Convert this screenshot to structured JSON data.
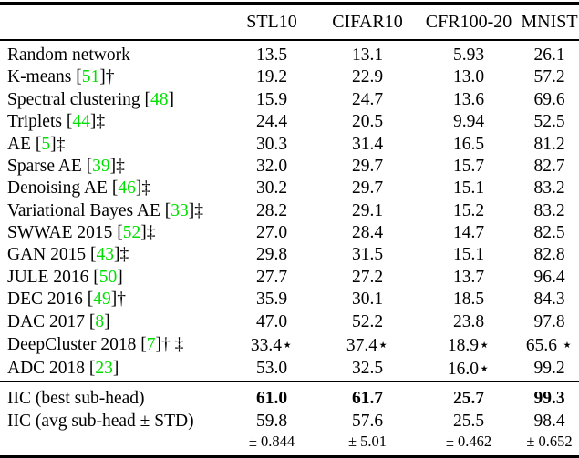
{
  "colors": {
    "citation_green": "#00e000",
    "text": "#000000",
    "background": "#ffffff"
  },
  "table": {
    "columns": [
      "STL10",
      "CIFAR10",
      "CFR100-20",
      "MNIST"
    ],
    "rows": [
      {
        "name": "Random network",
        "cite": "",
        "marker": "",
        "values": [
          "13.5",
          "13.1",
          "5.93",
          "26.1"
        ]
      },
      {
        "name": "K-means",
        "cite": "51",
        "marker": "†",
        "values": [
          "19.2",
          "22.9",
          "13.0",
          "57.2"
        ]
      },
      {
        "name": "Spectral clustering",
        "cite": "48",
        "marker": "",
        "values": [
          "15.9",
          "24.7",
          "13.6",
          "69.6"
        ]
      },
      {
        "name": "Triplets",
        "cite": "44",
        "marker": "‡",
        "values": [
          "24.4",
          "20.5",
          "9.94",
          "52.5"
        ]
      },
      {
        "name": "AE",
        "cite": "5",
        "marker": "‡",
        "values": [
          "30.3",
          "31.4",
          "16.5",
          "81.2"
        ]
      },
      {
        "name": "Sparse AE",
        "cite": "39",
        "marker": "‡",
        "values": [
          "32.0",
          "29.7",
          "15.7",
          "82.7"
        ]
      },
      {
        "name": "Denoising AE",
        "cite": "46",
        "marker": "‡",
        "values": [
          "30.2",
          "29.7",
          "15.1",
          "83.2"
        ]
      },
      {
        "name": "Variational Bayes AE",
        "cite": "33",
        "marker": "‡",
        "values": [
          "28.2",
          "29.1",
          "15.2",
          "83.2"
        ]
      },
      {
        "name": "SWWAE 2015",
        "cite": "52",
        "marker": "‡",
        "values": [
          "27.0",
          "28.4",
          "14.7",
          "82.5"
        ]
      },
      {
        "name": "GAN 2015",
        "cite": "43",
        "marker": "‡",
        "values": [
          "29.8",
          "31.5",
          "15.1",
          "82.8"
        ]
      },
      {
        "name": "JULE 2016",
        "cite": "50",
        "marker": "",
        "values": [
          "27.7",
          "27.2",
          "13.7",
          "96.4"
        ]
      },
      {
        "name": "DEC 2016",
        "cite": "49",
        "marker": "†",
        "values": [
          "35.9",
          "30.1",
          "18.5",
          "84.3"
        ]
      },
      {
        "name": "DAC 2017",
        "cite": "8",
        "marker": "",
        "values": [
          "47.0",
          "52.2",
          "23.8",
          "97.8"
        ]
      },
      {
        "name": "DeepCluster 2018",
        "cite": "7",
        "marker": "† ‡",
        "values": [
          "33.4⋆",
          "37.4⋆",
          "18.9⋆",
          "65.6 ⋆"
        ]
      },
      {
        "name": "ADC 2018",
        "cite": "23",
        "marker": "",
        "values": [
          "53.0",
          "32.5",
          "16.0⋆",
          "99.2"
        ]
      }
    ],
    "iic_rows": [
      {
        "label": "IIC (best sub-head)",
        "bold": true,
        "values": [
          "61.0",
          "61.7",
          "25.7",
          "99.3"
        ]
      },
      {
        "label": "IIC (avg sub-head ± STD)",
        "bold": false,
        "values": [
          "59.8",
          "57.6",
          "25.5",
          "98.4"
        ],
        "std": [
          "± 0.844",
          "± 5.01",
          "± 0.462",
          "± 0.652"
        ]
      }
    ]
  }
}
